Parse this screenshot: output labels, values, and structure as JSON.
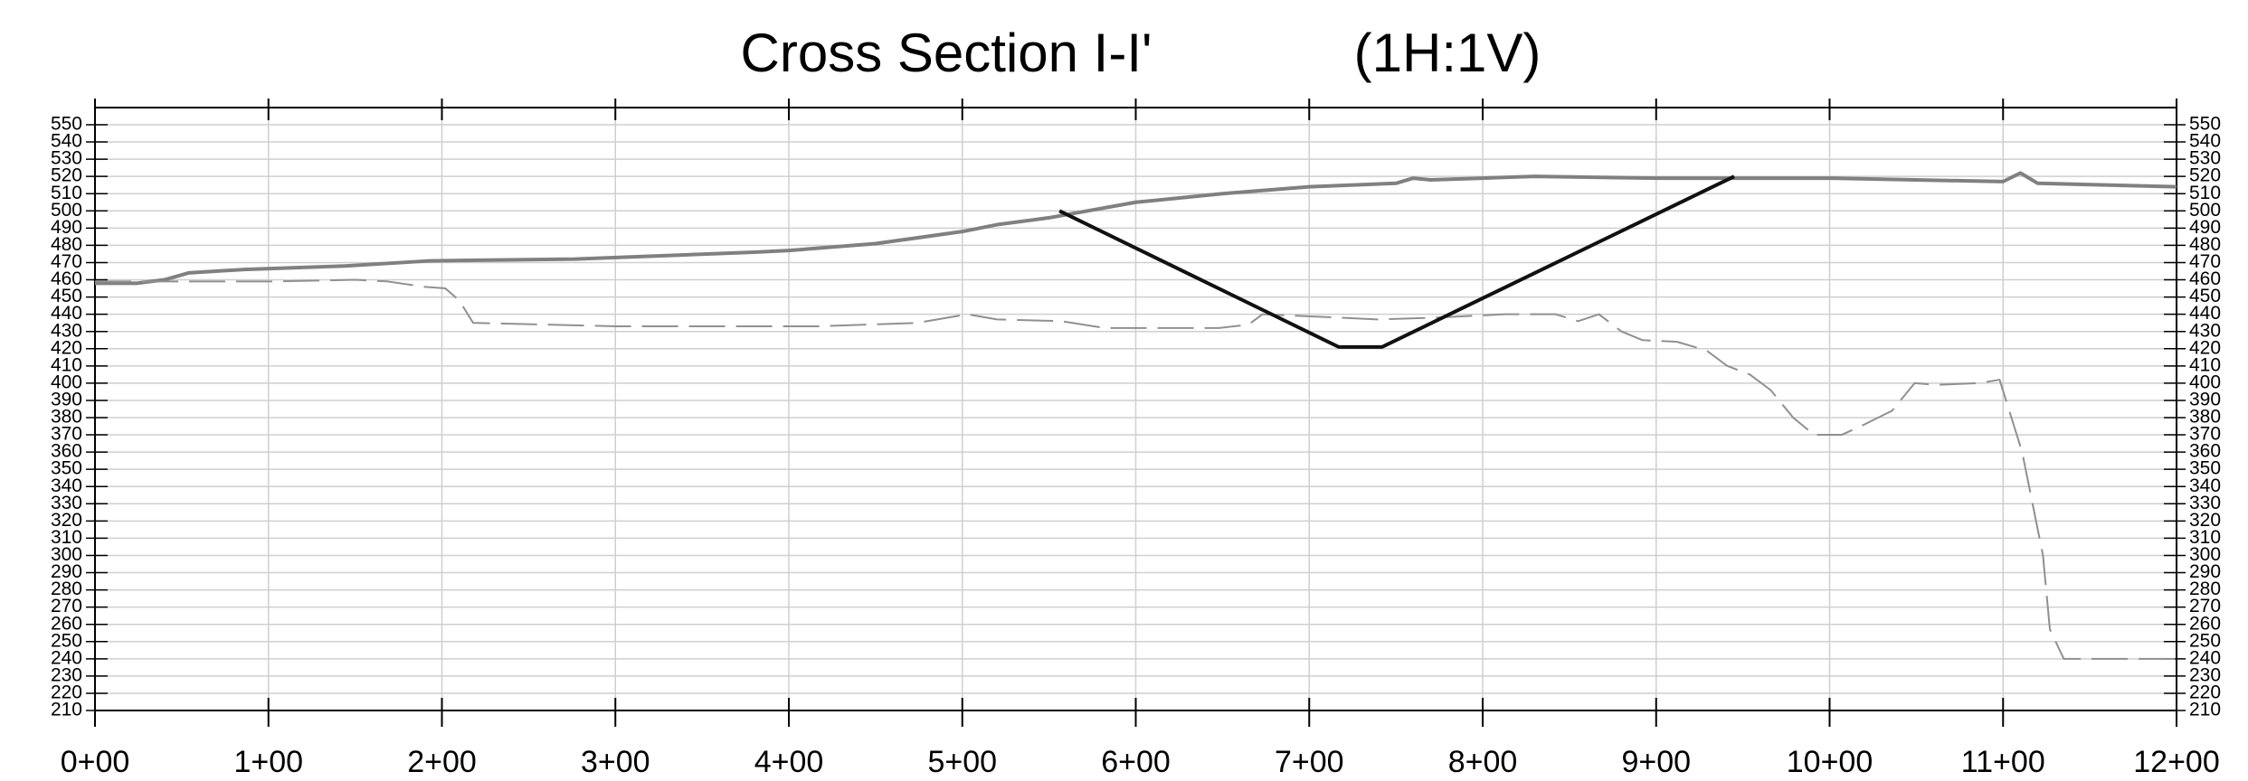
{
  "chart_data": {
    "type": "line",
    "title": "Cross Section I-I'",
    "subtitle": "(1H:1V)",
    "xlim": [
      0,
      1200
    ],
    "xticks": [
      {
        "value": 0,
        "label": "0+00"
      },
      {
        "value": 100,
        "label": "1+00"
      },
      {
        "value": 200,
        "label": "2+00"
      },
      {
        "value": 300,
        "label": "3+00"
      },
      {
        "value": 400,
        "label": "4+00"
      },
      {
        "value": 500,
        "label": "5+00"
      },
      {
        "value": 600,
        "label": "6+00"
      },
      {
        "value": 700,
        "label": "7+00"
      },
      {
        "value": 800,
        "label": "8+00"
      },
      {
        "value": 900,
        "label": "9+00"
      },
      {
        "value": 1000,
        "label": "10+00"
      },
      {
        "value": 1100,
        "label": "11+00"
      },
      {
        "value": 1200,
        "label": "12+00"
      }
    ],
    "ylim": [
      210,
      550
    ],
    "yticks": [
      210,
      220,
      230,
      240,
      250,
      260,
      270,
      280,
      290,
      300,
      310,
      320,
      330,
      340,
      350,
      360,
      370,
      380,
      390,
      400,
      410,
      420,
      430,
      440,
      450,
      460,
      470,
      480,
      490,
      500,
      510,
      520,
      530,
      540,
      550
    ],
    "grid": true,
    "series": [
      {
        "color": "#808080",
        "dash": false,
        "width": 4,
        "x": [
          0,
          24,
          40,
          54,
          86,
          144,
          193,
          276,
          380,
          400,
          450,
          500,
          520,
          550,
          600,
          650,
          700,
          750,
          760,
          770,
          800,
          830,
          900,
          1000,
          1100,
          1110,
          1120,
          1200
        ],
        "values": [
          458,
          458,
          460,
          464,
          466,
          468,
          471,
          472,
          476,
          477,
          481,
          488,
          492,
          496,
          505,
          510,
          514,
          516,
          519,
          518,
          519,
          520,
          519,
          519,
          517,
          522,
          516,
          514
        ]
      },
      {
        "color": "#909090",
        "dash": true,
        "width": 2,
        "x": [
          0,
          100,
          150,
          169,
          189,
          202,
          210,
          218,
          301,
          417,
          474,
          503,
          520,
          557,
          582,
          648,
          665,
          673,
          718,
          739,
          772,
          813,
          842,
          855,
          867,
          880,
          892,
          912,
          929,
          941,
          954,
          966,
          979,
          991,
          1007,
          1020,
          1036,
          1049,
          1061,
          1086,
          1098,
          1111,
          1123,
          1127,
          1135,
          1200
        ],
        "values": [
          459,
          459,
          460,
          459,
          456,
          455,
          448,
          435,
          433,
          433,
          435,
          440,
          437,
          436,
          432,
          432,
          434,
          440,
          438,
          437,
          438,
          440,
          440,
          436,
          440,
          430,
          425,
          424,
          419,
          410,
          405,
          396,
          380,
          370,
          370,
          376,
          384,
          400,
          399,
          400,
          402,
          360,
          300,
          257,
          240,
          240
        ]
      },
      {
        "color": "#111111",
        "dash": false,
        "width": 4,
        "x": [
          556,
          717,
          742,
          945
        ],
        "values": [
          500,
          421,
          421,
          520
        ]
      }
    ]
  }
}
